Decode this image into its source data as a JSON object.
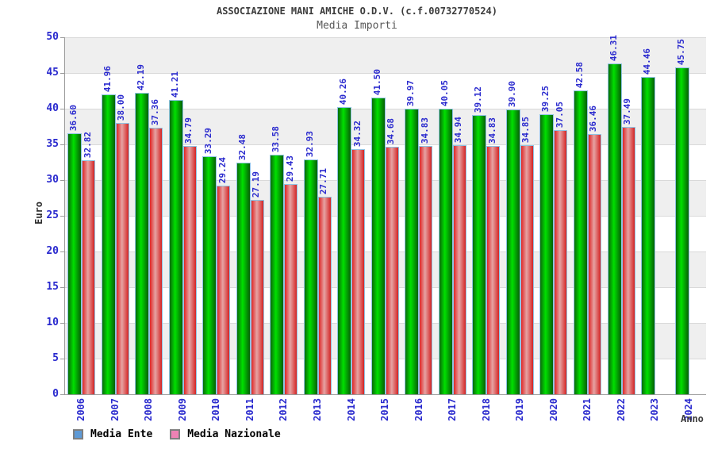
{
  "header": {
    "title": "ASSOCIAZIONE MANI AMICHE O.D.V. (c.f.00732770524)",
    "subtitle": "Media Importi"
  },
  "axes": {
    "y_label": "Euro",
    "x_label": "Anno",
    "y_ticks": [
      0,
      5,
      10,
      15,
      20,
      25,
      30,
      35,
      40,
      45,
      50
    ],
    "y_min": 0,
    "y_max": 50
  },
  "legend": {
    "items": [
      {
        "label": "Media Ente",
        "swatch_color": "#5e9ad6"
      },
      {
        "label": "Media Nazionale",
        "swatch_color": "#ee82b4"
      }
    ]
  },
  "colors": {
    "value_label": "#2a2ace",
    "tick_label": "#2a2ace",
    "band_gray": "#efefef",
    "band_white": "#ffffff",
    "gridline": "#d9d9d9",
    "bar_border": "#8fc3e2",
    "green_edge_left": "#0a6b0a",
    "green_mid": "#00e000",
    "green_edge_right": "#066006",
    "red_edge_left": "#df2626",
    "red_mid": "#e6a3a3",
    "red_edge_right": "#d42424"
  },
  "chart_data": {
    "type": "bar",
    "title": "ASSOCIAZIONE MANI AMICHE O.D.V. (c.f.00732770524)",
    "subtitle": "Media Importi",
    "xlabel": "Anno",
    "ylabel": "Euro",
    "ylim": [
      0,
      50
    ],
    "grid": true,
    "legend_position": "bottom-left",
    "categories": [
      "2006",
      "2007",
      "2008",
      "2009",
      "2010",
      "2011",
      "2012",
      "2013",
      "2014",
      "2015",
      "2016",
      "2017",
      "2018",
      "2019",
      "2020",
      "2021",
      "2022",
      "2023",
      "2024"
    ],
    "series": [
      {
        "name": "Media Ente",
        "color_style": "green-cylinder-gradient",
        "values": [
          36.6,
          41.96,
          42.19,
          41.21,
          33.29,
          32.48,
          33.58,
          32.93,
          40.26,
          41.5,
          39.97,
          40.05,
          39.12,
          39.9,
          39.25,
          42.58,
          46.31,
          44.46,
          45.75
        ],
        "labels": [
          "36.60",
          "41.96",
          "42.19",
          "41.21",
          "33.29",
          "32.48",
          "33.58",
          "32.93",
          "40.26",
          "41.50",
          "39.97",
          "40.05",
          "39.12",
          "39.90",
          "39.25",
          "42.58",
          "46.31",
          "44.46",
          "45.75"
        ]
      },
      {
        "name": "Media Nazionale",
        "color_style": "red-cylinder-gradient",
        "values": [
          32.82,
          38.0,
          37.36,
          34.79,
          29.24,
          27.19,
          29.43,
          27.71,
          34.32,
          34.68,
          34.83,
          34.94,
          34.83,
          34.85,
          37.05,
          36.46,
          37.49,
          null,
          null
        ],
        "labels": [
          "32.82",
          "38.00",
          "37.36",
          "34.79",
          "29.24",
          "27.19",
          "29.43",
          "27.71",
          "34.32",
          "34.68",
          "34.83",
          "34.94",
          "34.83",
          "34.85",
          "37.05",
          "36.46",
          "37.49",
          null,
          null
        ]
      }
    ]
  }
}
